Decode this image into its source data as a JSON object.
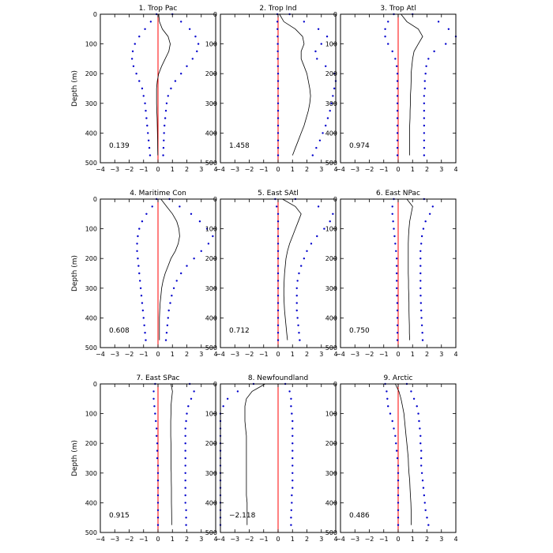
{
  "chart_data": {
    "type": "line",
    "ylabel": "Depth (m)",
    "xlim": [
      -4,
      4
    ],
    "ylim": [
      0,
      500
    ],
    "y_inverted": true,
    "xticks": [
      -4,
      -3,
      -2,
      -1,
      0,
      1,
      2,
      3,
      4
    ],
    "yticks": [
      0,
      100,
      200,
      300,
      400,
      500
    ],
    "zero_line_color": "#ff0000",
    "mean_line_color": "#000000",
    "bound_dot_color": "#0000cc",
    "depths": [
      0,
      25,
      50,
      75,
      100,
      125,
      150,
      175,
      200,
      225,
      250,
      275,
      300,
      325,
      350,
      375,
      400,
      425,
      450,
      475
    ],
    "panels": [
      {
        "title": "1. Trop Pac",
        "value_label": "0.139",
        "mean": [
          0.05,
          0.1,
          0.3,
          0.7,
          0.85,
          0.75,
          0.5,
          0.25,
          0.05,
          -0.05,
          -0.1,
          -0.1,
          -0.1,
          -0.08,
          -0.06,
          -0.05,
          -0.04,
          -0.03,
          -0.02,
          -0.01
        ],
        "upper": [
          1.0,
          1.6,
          2.2,
          2.6,
          2.8,
          2.7,
          2.4,
          2.0,
          1.6,
          1.2,
          0.9,
          0.7,
          0.6,
          0.55,
          0.5,
          0.45,
          0.42,
          0.4,
          0.38,
          0.36
        ],
        "lower": [
          -0.1,
          -0.5,
          -0.9,
          -1.3,
          -1.6,
          -1.75,
          -1.8,
          -1.7,
          -1.5,
          -1.3,
          -1.1,
          -1.0,
          -0.9,
          -0.85,
          -0.8,
          -0.75,
          -0.7,
          -0.65,
          -0.6,
          -0.55
        ]
      },
      {
        "title": "2. Trop Ind",
        "value_label": "1.458",
        "mean": [
          0.1,
          0.4,
          1.2,
          1.7,
          1.8,
          1.6,
          1.6,
          1.8,
          2.0,
          2.1,
          2.2,
          2.25,
          2.2,
          2.1,
          1.95,
          1.8,
          1.6,
          1.4,
          1.2,
          1.0
        ],
        "upper": [
          0.8,
          1.8,
          2.8,
          3.4,
          3.0,
          2.6,
          2.7,
          3.3,
          3.9,
          4.0,
          3.9,
          3.8,
          3.7,
          3.6,
          3.45,
          3.3,
          3.1,
          2.9,
          2.65,
          2.4
        ],
        "lower": [
          -0.05,
          -0.05,
          -0.04,
          -0.03,
          -0.02,
          -0.02,
          -0.02,
          -0.01,
          0,
          0,
          0,
          0,
          0,
          0,
          0,
          0,
          0,
          0,
          0,
          0
        ]
      },
      {
        "title": "3. Trop Atl",
        "value_label": "0.974",
        "mean": [
          0.2,
          0.6,
          1.4,
          1.7,
          1.4,
          1.1,
          1.0,
          0.95,
          0.9,
          0.9,
          0.88,
          0.85,
          0.85,
          0.83,
          0.82,
          0.8,
          0.8,
          0.8,
          0.8,
          0.8
        ],
        "upper": [
          1.0,
          2.8,
          3.5,
          4.0,
          3.3,
          2.5,
          2.1,
          1.95,
          1.9,
          1.85,
          1.85,
          1.8,
          1.8,
          1.8,
          1.8,
          1.8,
          1.8,
          1.8,
          1.8,
          1.8
        ],
        "lower": [
          -0.3,
          -0.7,
          -0.9,
          -0.9,
          -0.7,
          -0.4,
          -0.2,
          -0.1,
          -0.05,
          -0.05,
          -0.05,
          -0.05,
          -0.05,
          -0.05,
          -0.05,
          -0.05,
          -0.05,
          -0.05,
          -0.05,
          -0.05
        ]
      },
      {
        "title": "4. Maritime Con",
        "value_label": "0.608",
        "mean": [
          0.2,
          0.6,
          1.0,
          1.3,
          1.45,
          1.5,
          1.4,
          1.2,
          0.9,
          0.7,
          0.5,
          0.35,
          0.25,
          0.2,
          0.15,
          0.12,
          0.1,
          0.1,
          0.1,
          0.1
        ],
        "upper": [
          0.8,
          1.5,
          2.3,
          2.9,
          3.4,
          3.8,
          3.5,
          3.0,
          2.5,
          2.0,
          1.6,
          1.3,
          1.1,
          0.95,
          0.85,
          0.75,
          0.7,
          0.65,
          0.6,
          0.55
        ],
        "lower": [
          -0.1,
          -0.4,
          -0.8,
          -1.1,
          -1.3,
          -1.4,
          -1.45,
          -1.45,
          -1.4,
          -1.35,
          -1.3,
          -1.25,
          -1.2,
          -1.15,
          -1.1,
          -1.05,
          -1.0,
          -0.95,
          -0.9,
          -0.85
        ]
      },
      {
        "title": "5. East SAtl",
        "value_label": "0.712",
        "mean": [
          0.3,
          1.2,
          1.6,
          1.4,
          1.2,
          1.0,
          0.8,
          0.65,
          0.55,
          0.5,
          0.45,
          0.42,
          0.4,
          0.4,
          0.42,
          0.45,
          0.5,
          0.55,
          0.6,
          0.65
        ],
        "upper": [
          1.2,
          2.8,
          3.8,
          3.6,
          3.2,
          2.7,
          2.3,
          2.0,
          1.8,
          1.6,
          1.45,
          1.35,
          1.3,
          1.3,
          1.3,
          1.3,
          1.35,
          1.4,
          1.45,
          1.5
        ],
        "lower": [
          -0.2,
          -0.1,
          0,
          0,
          0,
          0,
          0,
          0,
          0,
          0,
          0,
          0,
          0,
          0,
          0,
          0,
          0,
          0,
          0,
          0
        ]
      },
      {
        "title": "6. East NPac",
        "value_label": "0.750",
        "mean": [
          0.6,
          1.0,
          0.9,
          0.8,
          0.75,
          0.72,
          0.7,
          0.7,
          0.7,
          0.7,
          0.7,
          0.72,
          0.72,
          0.74,
          0.75,
          0.75,
          0.76,
          0.78,
          0.78,
          0.8
        ],
        "upper": [
          1.8,
          2.4,
          2.2,
          1.9,
          1.75,
          1.65,
          1.6,
          1.55,
          1.55,
          1.55,
          1.55,
          1.55,
          1.55,
          1.56,
          1.58,
          1.6,
          1.62,
          1.65,
          1.68,
          1.7
        ],
        "lower": [
          -0.3,
          -0.4,
          -0.4,
          -0.35,
          -0.3,
          -0.25,
          -0.2,
          -0.15,
          -0.1,
          -0.1,
          -0.1,
          -0.1,
          -0.1,
          -0.08,
          -0.06,
          -0.05,
          -0.05,
          -0.05,
          -0.05,
          -0.05
        ]
      },
      {
        "title": "7. East SPac",
        "value_label": "0.915",
        "mean": [
          0.9,
          1.0,
          0.95,
          0.9,
          0.9,
          0.88,
          0.88,
          0.88,
          0.9,
          0.9,
          0.9,
          0.9,
          0.92,
          0.92,
          0.93,
          0.93,
          0.93,
          0.94,
          0.95,
          0.95
        ],
        "upper": [
          2.2,
          2.5,
          2.3,
          2.1,
          2.0,
          1.95,
          1.9,
          1.9,
          1.9,
          1.9,
          1.9,
          1.9,
          1.9,
          1.9,
          1.9,
          1.9,
          1.9,
          1.95,
          1.95,
          1.95
        ],
        "lower": [
          -0.2,
          -0.3,
          -0.3,
          -0.25,
          -0.2,
          -0.15,
          -0.1,
          -0.1,
          -0.05,
          -0.05,
          -0.05,
          0,
          0,
          0,
          0,
          0,
          0,
          0,
          0,
          0
        ]
      },
      {
        "title": "8. Newfoundland",
        "value_label": "-2.118",
        "mean": [
          -0.9,
          -1.8,
          -2.2,
          -2.3,
          -2.3,
          -2.3,
          -2.25,
          -2.2,
          -2.2,
          -2.2,
          -2.2,
          -2.2,
          -2.2,
          -2.2,
          -2.2,
          -2.2,
          -2.15,
          -2.15,
          -2.15,
          -2.15
        ],
        "upper": [
          0.5,
          0.8,
          0.9,
          0.9,
          0.95,
          1.0,
          1.0,
          1.0,
          1.0,
          1.0,
          1.0,
          1.0,
          1.0,
          1.0,
          1.0,
          0.95,
          0.95,
          0.92,
          0.9,
          0.9
        ],
        "lower": [
          -1.7,
          -2.8,
          -3.5,
          -3.8,
          -4.0,
          -4.0,
          -4.0,
          -4.0,
          -4.0,
          -4.0,
          -4.0,
          -4.0,
          -4.0,
          -4.0,
          -4.0,
          -4.0,
          -4.0,
          -4.0,
          -4.0,
          -4.0
        ]
      },
      {
        "title": "9. Arctic",
        "value_label": "0.486",
        "mean": [
          -0.2,
          0.05,
          0.2,
          0.3,
          0.4,
          0.45,
          0.5,
          0.55,
          0.6,
          0.65,
          0.7,
          0.72,
          0.75,
          0.8,
          0.82,
          0.85,
          0.88,
          0.9,
          0.9,
          0.9
        ],
        "upper": [
          0.6,
          0.9,
          1.1,
          1.3,
          1.4,
          1.45,
          1.5,
          1.55,
          1.55,
          1.6,
          1.6,
          1.6,
          1.65,
          1.7,
          1.75,
          1.8,
          1.85,
          1.9,
          2.0,
          2.1
        ],
        "lower": [
          -0.9,
          -0.8,
          -0.75,
          -0.7,
          -0.55,
          -0.4,
          -0.3,
          -0.2,
          -0.15,
          -0.1,
          -0.05,
          0,
          0,
          0,
          0,
          0,
          0,
          0,
          0,
          0
        ]
      }
    ]
  }
}
